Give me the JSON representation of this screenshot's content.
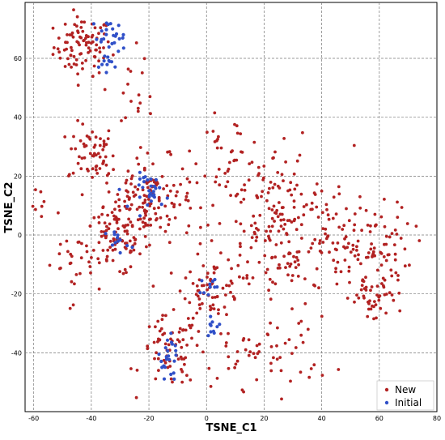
{
  "chart_data": {
    "type": "scatter",
    "title": "",
    "xlabel": "TSNE_C1",
    "ylabel": "TSNE_C2",
    "xlim": [
      -63,
      80
    ],
    "ylim": [
      -60,
      79
    ],
    "x_ticks": [
      -60,
      -40,
      -20,
      0,
      20,
      40,
      60,
      80
    ],
    "y_ticks": [
      -40,
      -20,
      0,
      20,
      40,
      60
    ],
    "grid": true,
    "grid_style": "dashed",
    "legend_position": "bottom-right",
    "series": [
      {
        "name": "New",
        "color": "#b22222",
        "clusters": [
          {
            "cx": -43,
            "cy": 64,
            "sx": 5,
            "sy": 5,
            "n": 90
          },
          {
            "cx": -40,
            "cy": 28,
            "sx": 4,
            "sy": 5,
            "n": 55
          },
          {
            "cx": -20,
            "cy": 12,
            "sx": 8,
            "sy": 7,
            "n": 150
          },
          {
            "cx": -32,
            "cy": -2,
            "sx": 6,
            "sy": 6,
            "n": 80
          },
          {
            "cx": -13,
            "cy": -40,
            "sx": 5,
            "sy": 6,
            "n": 70
          },
          {
            "cx": 2,
            "cy": -18,
            "sx": 5,
            "sy": 5,
            "n": 60
          },
          {
            "cx": 8,
            "cy": 28,
            "sx": 6,
            "sy": 6,
            "n": 35
          },
          {
            "cx": 25,
            "cy": 2,
            "sx": 13,
            "sy": 14,
            "n": 220
          },
          {
            "cx": 55,
            "cy": -5,
            "sx": 8,
            "sy": 8,
            "n": 100
          },
          {
            "cx": 58,
            "cy": -22,
            "sx": 4,
            "sy": 4,
            "n": 40
          },
          {
            "cx": 20,
            "cy": -40,
            "sx": 12,
            "sy": 6,
            "n": 60
          },
          {
            "cx": -48,
            "cy": -10,
            "sx": 5,
            "sy": 8,
            "n": 25
          },
          {
            "cx": -25,
            "cy": 50,
            "sx": 6,
            "sy": 10,
            "n": 20
          },
          {
            "cx": -58,
            "cy": 10,
            "sx": 2,
            "sy": 3,
            "n": 8
          }
        ]
      },
      {
        "name": "Initial",
        "color": "#3050c8",
        "clusters": [
          {
            "cx": -34,
            "cy": 67,
            "sx": 3,
            "sy": 3,
            "n": 25
          },
          {
            "cx": -33,
            "cy": 58,
            "sx": 2,
            "sy": 2,
            "n": 10
          },
          {
            "cx": -19,
            "cy": 15,
            "sx": 3,
            "sy": 3,
            "n": 30
          },
          {
            "cx": -31,
            "cy": -2,
            "sx": 2,
            "sy": 2,
            "n": 12
          },
          {
            "cx": 1,
            "cy": -17,
            "sx": 1.5,
            "sy": 1.5,
            "n": 10
          },
          {
            "cx": 2,
            "cy": -31,
            "sx": 1.5,
            "sy": 1.5,
            "n": 10
          },
          {
            "cx": -13,
            "cy": -44,
            "sx": 2,
            "sy": 3,
            "n": 18
          },
          {
            "cx": -12,
            "cy": -37,
            "sx": 1.5,
            "sy": 1.5,
            "n": 6
          }
        ]
      }
    ]
  }
}
